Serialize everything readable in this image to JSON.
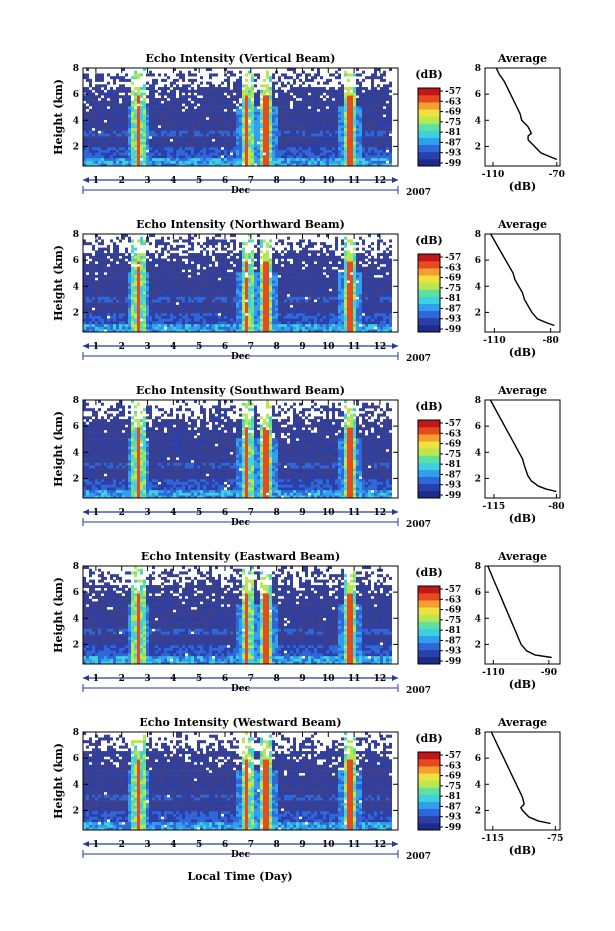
{
  "figure": {
    "xlabel": "Local Time (Day)",
    "month_label": "Dec",
    "year_label": "2007",
    "colorbar_unit": "(dB)",
    "avg_xlabel": "(dB)"
  },
  "chart_data": [
    {
      "type": "heatmap",
      "title": "Echo Intensity (Vertical Beam)",
      "ylabel": "Height (km)",
      "ylim": [
        0.5,
        8
      ],
      "yticks": [
        2,
        4,
        6,
        8
      ],
      "xticks": [
        "1",
        "2",
        "3",
        "4",
        "5",
        "6",
        "7",
        "8",
        "9",
        "10",
        "11",
        "12"
      ],
      "xlim_day": [
        0.5,
        12.7
      ],
      "colorbar_ticks": [
        -57,
        -63,
        -69,
        -75,
        -81,
        -87,
        -93,
        -99
      ],
      "data_end_day": 12.4,
      "strong_echo_days": [
        2.6,
        6.8,
        7.5,
        10.8
      ],
      "average": {
        "title": "Average",
        "xticks": [
          -110,
          -70
        ],
        "xlim": [
          -115,
          -68
        ],
        "ylim": [
          0.5,
          8
        ],
        "yticks": [
          2,
          4,
          6,
          8
        ],
        "height_km": [
          8,
          7.5,
          7,
          6.5,
          6,
          5.5,
          5,
          4.5,
          4,
          3.5,
          3,
          2.8,
          2.5,
          2,
          1.5,
          1.2,
          1
        ],
        "intensity_db": [
          -108,
          -106,
          -103,
          -101,
          -99,
          -97,
          -95,
          -93,
          -92,
          -88,
          -86,
          -88,
          -88,
          -84,
          -80,
          -74,
          -70
        ]
      }
    },
    {
      "type": "heatmap",
      "title": "Echo Intensity (Northward Beam)",
      "ylabel": "Height (km)",
      "ylim": [
        0.5,
        8
      ],
      "yticks": [
        2,
        4,
        6,
        8
      ],
      "xticks": [
        "1",
        "2",
        "3",
        "4",
        "5",
        "6",
        "7",
        "8",
        "9",
        "10",
        "11",
        "12"
      ],
      "xlim_day": [
        0.5,
        12.7
      ],
      "colorbar_ticks": [
        -57,
        -63,
        -69,
        -75,
        -81,
        -87,
        -93,
        -99
      ],
      "data_end_day": 12.4,
      "strong_echo_days": [
        2.6,
        6.8,
        7.5,
        10.8
      ],
      "average": {
        "title": "Average",
        "xticks": [
          -110,
          -80
        ],
        "xlim": [
          -115,
          -75
        ],
        "ylim": [
          0.5,
          8
        ],
        "yticks": [
          2,
          4,
          6,
          8
        ],
        "height_km": [
          8,
          7.5,
          7,
          6.5,
          6,
          5.5,
          5,
          4.5,
          4,
          3.5,
          3,
          2.5,
          2,
          1.5,
          1.2,
          1
        ],
        "intensity_db": [
          -112,
          -110,
          -108,
          -106,
          -104,
          -102,
          -100,
          -99,
          -97,
          -95,
          -94,
          -92,
          -90,
          -87,
          -82,
          -78
        ]
      }
    },
    {
      "type": "heatmap",
      "title": "Echo Intensity (Southward Beam)",
      "ylabel": "Height (km)",
      "ylim": [
        0.5,
        8
      ],
      "yticks": [
        2,
        4,
        6,
        8
      ],
      "xticks": [
        "1",
        "2",
        "3",
        "4",
        "5",
        "6",
        "7",
        "8",
        "9",
        "10",
        "11",
        "12"
      ],
      "xlim_day": [
        0.5,
        12.7
      ],
      "colorbar_ticks": [
        -57,
        -63,
        -69,
        -75,
        -81,
        -87,
        -93,
        -99
      ],
      "data_end_day": 12.4,
      "strong_echo_days": [
        2.6,
        6.8,
        7.5,
        10.8
      ],
      "average": {
        "title": "Average",
        "xticks": [
          -115,
          -80
        ],
        "xlim": [
          -120,
          -78
        ],
        "ylim": [
          0.5,
          8
        ],
        "yticks": [
          2,
          4,
          6,
          8
        ],
        "height_km": [
          8,
          7.5,
          7,
          6.5,
          6,
          5.5,
          5,
          4.5,
          4,
          3.5,
          3,
          2.6,
          2.2,
          1.8,
          1.4,
          1.2,
          1
        ],
        "intensity_db": [
          -117,
          -115,
          -113,
          -111,
          -109,
          -107,
          -105,
          -103,
          -101,
          -99,
          -98,
          -97,
          -96,
          -94,
          -90,
          -86,
          -80
        ]
      }
    },
    {
      "type": "heatmap",
      "title": "Echo Intensity (Eastward Beam)",
      "ylabel": "Height (km)",
      "ylim": [
        0.5,
        8
      ],
      "yticks": [
        2,
        4,
        6,
        8
      ],
      "xticks": [
        "1",
        "2",
        "3",
        "4",
        "5",
        "6",
        "7",
        "8",
        "9",
        "10",
        "11",
        "12"
      ],
      "xlim_day": [
        0.5,
        12.7
      ],
      "colorbar_ticks": [
        -57,
        -63,
        -69,
        -75,
        -81,
        -87,
        -93,
        -99
      ],
      "data_end_day": 12.4,
      "strong_echo_days": [
        2.6,
        6.8,
        7.5,
        10.8
      ],
      "average": {
        "title": "Average",
        "xticks": [
          -110,
          -90
        ],
        "xlim": [
          -113,
          -86
        ],
        "ylim": [
          0.5,
          8
        ],
        "yticks": [
          2,
          4,
          6,
          8
        ],
        "height_km": [
          8,
          7.5,
          7,
          6.5,
          6,
          5.5,
          5,
          4.5,
          4,
          3.5,
          3,
          2.5,
          2,
          1.5,
          1.2,
          1
        ],
        "intensity_db": [
          -112,
          -111,
          -110,
          -109,
          -108,
          -107,
          -106,
          -105,
          -104,
          -103,
          -102,
          -101,
          -100,
          -98,
          -95,
          -89
        ]
      }
    },
    {
      "type": "heatmap",
      "title": "Echo Intensity (Westward Beam)",
      "ylabel": "Height (km)",
      "ylim": [
        0.5,
        8
      ],
      "yticks": [
        2,
        4,
        6,
        8
      ],
      "xticks": [
        "1",
        "2",
        "3",
        "4",
        "5",
        "6",
        "7",
        "8",
        "9",
        "10",
        "11",
        "12"
      ],
      "xlim_day": [
        0.5,
        12.7
      ],
      "colorbar_ticks": [
        -57,
        -63,
        -69,
        -75,
        -81,
        -87,
        -93,
        -99
      ],
      "data_end_day": 12.4,
      "strong_echo_days": [
        2.6,
        6.8,
        7.5,
        10.8
      ],
      "average": {
        "title": "Average",
        "xticks": [
          -115,
          -75
        ],
        "xlim": [
          -120,
          -72
        ],
        "ylim": [
          0.5,
          8
        ],
        "yticks": [
          2,
          4,
          6,
          8
        ],
        "height_km": [
          8,
          7.5,
          7,
          6.5,
          6,
          5.5,
          5,
          4.5,
          4,
          3.5,
          3,
          2.5,
          2.2,
          2,
          1.5,
          1.2,
          1
        ],
        "intensity_db": [
          -116,
          -114,
          -112,
          -110,
          -108,
          -106,
          -104,
          -102,
          -100,
          -98,
          -96,
          -95,
          -97,
          -96,
          -92,
          -86,
          -78
        ]
      }
    }
  ],
  "colormap": [
    "#1e2a8c",
    "#2b3fa8",
    "#2f66d8",
    "#2fa0ee",
    "#3fd0e0",
    "#5fe0a0",
    "#b8e850",
    "#f0e040",
    "#f4a030",
    "#e84a20",
    "#c01818"
  ],
  "background_color": "#3a3f8e"
}
